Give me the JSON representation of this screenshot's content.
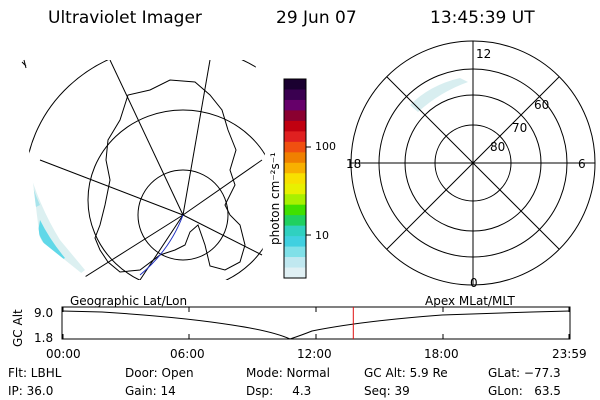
{
  "header": {
    "instrument": "Ultraviolet Imager",
    "date": "29 Jun 07",
    "time": "13:45:39 UT"
  },
  "colorbar": {
    "label": "photon cm⁻²s⁻¹",
    "ticks": [
      "100",
      "10"
    ],
    "colors": [
      "#1a0030",
      "#3a0050",
      "#66006a",
      "#8a0030",
      "#c00010",
      "#e02020",
      "#f05010",
      "#f08000",
      "#f8b000",
      "#f8e000",
      "#e8f000",
      "#a8f000",
      "#40e000",
      "#20d060",
      "#30d0c0",
      "#40d0e0",
      "#80e0e8",
      "#c0e8f0",
      "#e0f0f4"
    ]
  },
  "polar_plot": {
    "lat_labels": [
      "60",
      "70",
      "80"
    ],
    "mlt_labels": {
      "top": "12",
      "left": "18",
      "right": "6",
      "bottom": "0"
    }
  },
  "timeline": {
    "left_title": "Geographic Lat/Lon",
    "right_title": "Apex MLat/MLT",
    "ylabel": "GC Alt",
    "y_ticks": [
      "9.0",
      "1.8"
    ],
    "x_ticks": [
      "00:00",
      "06:00",
      "12:00",
      "18:00",
      "23:59"
    ],
    "current_time_fraction": 0.5734
  },
  "info": {
    "flt": "Flt: LBHL",
    "ip": "IP: 36.0",
    "door": "Door: Open",
    "gain": "Gain: 14",
    "mode": "Mode: Normal",
    "dsp": "Dsp:     4.3",
    "gcalt": "GC Alt: 5.9 Re",
    "seq": "Seq: 39",
    "glat": "GLat: −77.3",
    "glon": "GLon:   63.5"
  }
}
